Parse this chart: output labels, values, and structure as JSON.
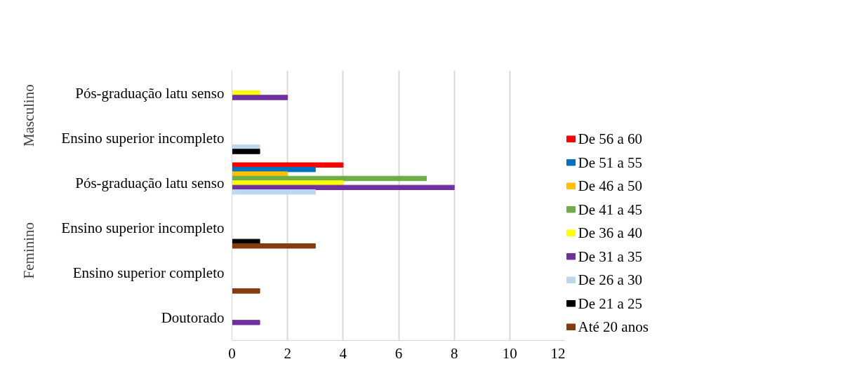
{
  "chart_data": {
    "type": "bar",
    "orientation": "horizontal",
    "categories": [
      "Pós-graduação latu senso",
      "Ensino superior incompleto",
      "Pós-graduação latu senso",
      "Ensino superior incompleto",
      "Ensino superior completo",
      "Doutorado"
    ],
    "series": [
      {
        "name": "De 56 a 60",
        "color": "#ff0000",
        "values": [
          null,
          null,
          4,
          null,
          null,
          null
        ]
      },
      {
        "name": "De 51 a 55",
        "color": "#0070c0",
        "values": [
          null,
          null,
          3,
          null,
          null,
          null
        ]
      },
      {
        "name": "De 46 a 50",
        "color": "#ffc000",
        "values": [
          null,
          null,
          2,
          null,
          null,
          null
        ]
      },
      {
        "name": "De 41 a 45",
        "color": "#70ad47",
        "values": [
          null,
          null,
          7,
          null,
          null,
          null
        ]
      },
      {
        "name": "De 36 a 40",
        "color": "#ffff00",
        "values": [
          1,
          null,
          4,
          null,
          null,
          null
        ]
      },
      {
        "name": "De 31 a 35",
        "color": "#7030a0",
        "values": [
          2,
          null,
          8,
          null,
          null,
          1
        ]
      },
      {
        "name": "De 26 a 30",
        "color": "#bdd7ee",
        "values": [
          null,
          1,
          3,
          null,
          null,
          null
        ]
      },
      {
        "name": "De 21 a 25",
        "color": "#000000",
        "values": [
          null,
          1,
          null,
          1,
          null,
          null
        ]
      },
      {
        "name": "Até 20 anos",
        "color": "#843c0c",
        "values": [
          null,
          null,
          null,
          3,
          1,
          null
        ]
      }
    ],
    "xlim": [
      0,
      12
    ],
    "xticks": [
      0,
      2,
      4,
      6,
      8,
      10,
      12
    ],
    "grid": "x",
    "legend": "right",
    "annotations": [
      "Masculino",
      "Feminino"
    ]
  }
}
